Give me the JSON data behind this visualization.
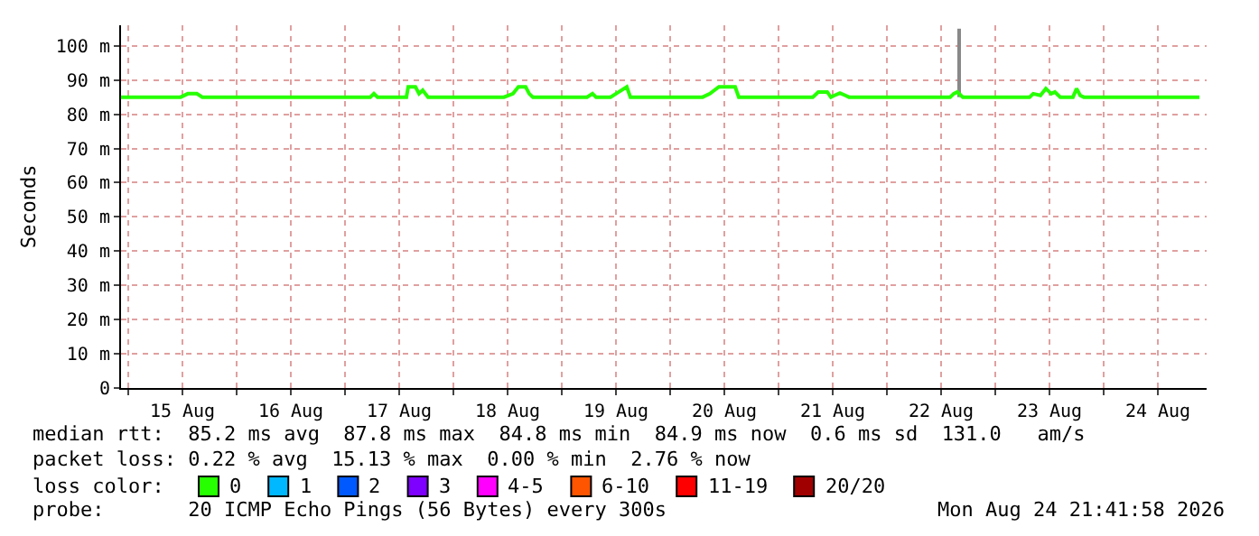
{
  "chart_data": {
    "type": "line",
    "ylabel": "Seconds",
    "legend_title": "loss color:",
    "xlim": [
      "2026-08-14T22:24",
      "2026-08-24T22:48"
    ],
    "xticks": [
      {
        "value": "2026-08-15T00:00",
        "label": null
      },
      {
        "value": "2026-08-15T12:00",
        "label": "15 Aug"
      },
      {
        "value": "2026-08-16T00:00",
        "label": null
      },
      {
        "value": "2026-08-16T12:00",
        "label": "16 Aug"
      },
      {
        "value": "2026-08-17T00:00",
        "label": null
      },
      {
        "value": "2026-08-17T12:00",
        "label": "17 Aug"
      },
      {
        "value": "2026-08-18T00:00",
        "label": null
      },
      {
        "value": "2026-08-18T12:00",
        "label": "18 Aug"
      },
      {
        "value": "2026-08-19T00:00",
        "label": null
      },
      {
        "value": "2026-08-19T12:00",
        "label": "19 Aug"
      },
      {
        "value": "2026-08-20T00:00",
        "label": null
      },
      {
        "value": "2026-08-20T12:00",
        "label": "20 Aug"
      },
      {
        "value": "2026-08-21T00:00",
        "label": null
      },
      {
        "value": "2026-08-21T12:00",
        "label": "21 Aug"
      },
      {
        "value": "2026-08-22T00:00",
        "label": null
      },
      {
        "value": "2026-08-22T12:00",
        "label": "22 Aug"
      },
      {
        "value": "2026-08-23T00:00",
        "label": null
      },
      {
        "value": "2026-08-23T12:00",
        "label": "23 Aug"
      },
      {
        "value": "2026-08-24T00:00",
        "label": null
      },
      {
        "value": "2026-08-24T12:00",
        "label": "24 Aug"
      }
    ],
    "ylim": [
      0,
      106
    ],
    "yticks": [
      {
        "value": 0,
        "label": "0"
      },
      {
        "value": 10,
        "label": "10 m"
      },
      {
        "value": 20,
        "label": "20 m"
      },
      {
        "value": 30,
        "label": "30 m"
      },
      {
        "value": 40,
        "label": "40 m"
      },
      {
        "value": 50,
        "label": "50 m"
      },
      {
        "value": 60,
        "label": "60 m"
      },
      {
        "value": 70,
        "label": "70 m"
      },
      {
        "value": 80,
        "label": "80 m"
      },
      {
        "value": 90,
        "label": "90 m"
      },
      {
        "value": 100,
        "label": "100 m"
      }
    ],
    "grid": true,
    "legend": "bottom",
    "marker": "none",
    "line_style": "solid",
    "series": [
      {
        "color": "#888888",
        "x": [
          "2026-08-22T16:00",
          "2026-08-22T16:00"
        ],
        "values": [
          85,
          105
        ]
      },
      {
        "name": "0",
        "color": "#26ff00",
        "x": [
          "2026-08-14T22:24",
          "2026-08-15T11:36",
          "2026-08-15T13:12",
          "2026-08-15T15:12",
          "2026-08-15T16:24",
          "2026-08-17T05:36",
          "2026-08-17T06:24",
          "2026-08-17T07:12",
          "2026-08-17T13:36",
          "2026-08-17T14:00",
          "2026-08-17T15:36",
          "2026-08-17T16:24",
          "2026-08-17T17:12",
          "2026-08-17T18:24",
          "2026-08-18T11:12",
          "2026-08-18T13:12",
          "2026-08-18T14:24",
          "2026-08-18T16:00",
          "2026-08-18T16:48",
          "2026-08-18T17:36",
          "2026-08-19T05:36",
          "2026-08-19T06:48",
          "2026-08-19T07:36",
          "2026-08-19T10:48",
          "2026-08-19T12:00",
          "2026-08-19T14:24",
          "2026-08-19T15:12",
          "2026-08-20T07:12",
          "2026-08-20T08:48",
          "2026-08-20T10:48",
          "2026-08-20T14:24",
          "2026-08-20T15:12",
          "2026-08-21T07:36",
          "2026-08-21T08:48",
          "2026-08-21T10:48",
          "2026-08-21T11:36",
          "2026-08-21T12:24",
          "2026-08-21T13:36",
          "2026-08-21T14:48",
          "2026-08-21T15:36",
          "2026-08-22T14:00",
          "2026-08-22T14:48",
          "2026-08-22T15:36",
          "2026-08-22T16:48",
          "2026-08-23T07:36",
          "2026-08-23T08:24",
          "2026-08-23T10:00",
          "2026-08-23T11:12",
          "2026-08-23T12:24",
          "2026-08-23T13:12",
          "2026-08-23T14:24",
          "2026-08-23T17:12",
          "2026-08-23T18:00",
          "2026-08-23T18:48",
          "2026-08-23T19:36",
          "2026-08-24T21:12"
        ],
        "values": [
          85,
          85,
          86,
          86,
          85,
          85,
          86,
          85,
          85,
          88,
          88,
          86,
          87,
          85,
          85,
          86,
          88,
          88,
          86,
          85,
          85,
          86,
          85,
          85,
          86,
          88,
          85,
          85,
          86,
          88,
          88,
          85,
          85,
          86.5,
          86.5,
          85,
          85.5,
          86.2,
          85.5,
          85,
          85,
          86,
          86.5,
          85,
          85,
          86,
          85.5,
          87.5,
          86,
          86.5,
          85,
          85,
          87.5,
          85.5,
          85,
          85
        ]
      },
      {
        "name": "1",
        "color": "#00b8ff"
      },
      {
        "name": "2",
        "color": "#0059ff"
      },
      {
        "name": "3",
        "color": "#7e00ff"
      },
      {
        "name": "4-5",
        "color": "#ff00ff"
      },
      {
        "name": "6-10",
        "color": "#ff5500"
      },
      {
        "name": "11-19",
        "color": "#ff0000"
      },
      {
        "name": "20/20",
        "color": "#a10000"
      }
    ],
    "annotations": [
      "median rtt:  85.2 ms avg  87.8 ms max  84.8 ms min  84.9 ms now  0.6 ms sd  131.0   am/s",
      "packet loss: 0.22 % avg  15.13 % max  0.00 % min  2.76 % now",
      "probe:       20 ICMP Echo Pings (56 Bytes) every 300s",
      "Mon Aug 24 21:41:58 2026"
    ]
  }
}
